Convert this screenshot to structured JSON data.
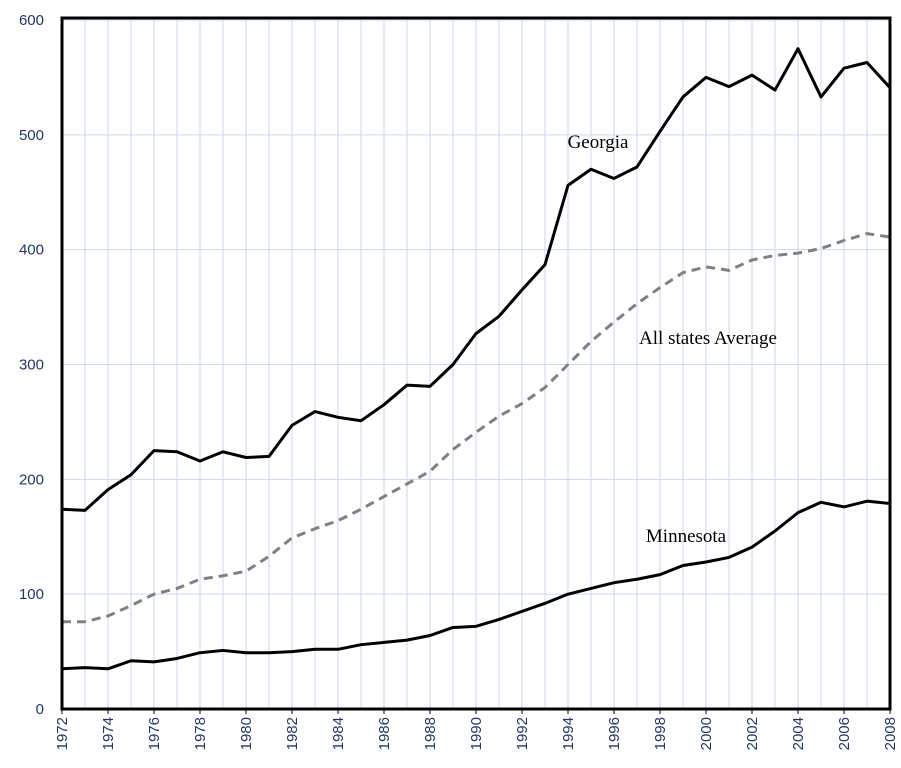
{
  "chart_data": {
    "type": "line",
    "x": [
      1972,
      1973,
      1974,
      1975,
      1976,
      1977,
      1978,
      1979,
      1980,
      1981,
      1982,
      1983,
      1984,
      1985,
      1986,
      1987,
      1988,
      1989,
      1990,
      1991,
      1992,
      1993,
      1994,
      1995,
      1996,
      1997,
      1998,
      1999,
      2000,
      2001,
      2002,
      2003,
      2004,
      2005,
      2006,
      2007,
      2008
    ],
    "series": [
      {
        "name": "Georgia",
        "color": "#000000",
        "dash": false,
        "values": [
          174,
          173,
          191,
          204,
          225,
          224,
          216,
          224,
          219,
          220,
          247,
          259,
          254,
          251,
          265,
          282,
          281,
          300,
          327,
          342,
          365,
          387,
          456,
          470,
          462,
          472,
          503,
          533,
          550,
          542,
          552,
          539,
          575,
          533,
          558,
          563,
          541
        ]
      },
      {
        "name": "All states Average",
        "color": "#808080",
        "dash": true,
        "values": [
          76,
          76,
          81,
          90,
          100,
          105,
          113,
          116,
          120,
          133,
          149,
          157,
          164,
          174,
          185,
          196,
          207,
          226,
          241,
          255,
          266,
          280,
          300,
          320,
          337,
          353,
          367,
          380,
          385,
          382,
          391,
          395,
          397,
          401,
          408,
          414,
          411
        ]
      },
      {
        "name": "Minnesota",
        "color": "#000000",
        "dash": false,
        "values": [
          35,
          36,
          35,
          42,
          41,
          44,
          49,
          51,
          49,
          49,
          50,
          52,
          52,
          56,
          58,
          60,
          64,
          71,
          72,
          78,
          85,
          92,
          100,
          105,
          110,
          113,
          117,
          125,
          128,
          132,
          141,
          155,
          171,
          180,
          176,
          181,
          179
        ]
      }
    ],
    "xlim": [
      1972,
      2008
    ],
    "xticks": [
      1972,
      1974,
      1976,
      1978,
      1980,
      1982,
      1984,
      1986,
      1988,
      1990,
      1992,
      1994,
      1996,
      1998,
      2000,
      2002,
      2004,
      2006,
      2008
    ],
    "ylim": [
      0,
      600
    ],
    "yticks": [
      0,
      100,
      200,
      300,
      400,
      500,
      600
    ],
    "grid": true
  }
}
